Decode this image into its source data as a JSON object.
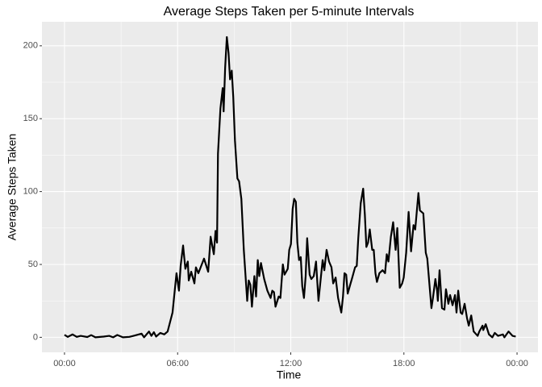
{
  "chart_data": {
    "type": "line",
    "title": "Average Steps Taken per 5-minute Intervals",
    "x_label": "Time",
    "y_label": "Average Steps Taken",
    "color": "#000000",
    "grid": true,
    "xlim": [
      -1.196,
      25.11
    ],
    "ylim": [
      -10.3,
      216.5
    ],
    "xticks": [
      {
        "value": 0,
        "label": "00:00"
      },
      {
        "value": 6,
        "label": "06:00"
      },
      {
        "value": 12,
        "label": "12:00"
      },
      {
        "value": 18,
        "label": "18:00"
      },
      {
        "value": 24,
        "label": "00:00"
      }
    ],
    "yticks": [
      0,
      50,
      100,
      150,
      200
    ],
    "x": [
      0,
      0.17,
      0.43,
      0.65,
      0.86,
      1.21,
      1.42,
      1.64,
      2.07,
      2.37,
      2.58,
      2.8,
      3.1,
      3.44,
      3.66,
      4.09,
      4.22,
      4.48,
      4.61,
      4.74,
      4.86,
      5.08,
      5.29,
      5.47,
      5.73,
      5.94,
      6.07,
      6.16,
      6.29,
      6.41,
      6.54,
      6.59,
      6.72,
      6.89,
      6.97,
      7.1,
      7.28,
      7.4,
      7.62,
      7.75,
      7.92,
      8.01,
      8.09,
      8.14,
      8.27,
      8.39,
      8.44,
      8.52,
      8.61,
      8.7,
      8.78,
      8.87,
      8.95,
      9.04,
      9.17,
      9.26,
      9.38,
      9.51,
      9.69,
      9.77,
      9.86,
      9.94,
      10.07,
      10.16,
      10.25,
      10.33,
      10.42,
      10.59,
      10.76,
      10.93,
      11.02,
      11.11,
      11.19,
      11.36,
      11.45,
      11.58,
      11.67,
      11.84,
      11.92,
      12.01,
      12.1,
      12.18,
      12.27,
      12.35,
      12.44,
      12.53,
      12.61,
      12.7,
      12.79,
      12.87,
      13.0,
      13.09,
      13.22,
      13.34,
      13.47,
      13.69,
      13.78,
      13.9,
      14.03,
      14.16,
      14.25,
      14.38,
      14.51,
      14.68,
      14.77,
      14.85,
      14.94,
      15.02,
      15.15,
      15.24,
      15.41,
      15.5,
      15.58,
      15.71,
      15.84,
      15.93,
      16.01,
      16.1,
      16.19,
      16.32,
      16.4,
      16.49,
      16.57,
      16.7,
      16.87,
      17.0,
      17.09,
      17.18,
      17.31,
      17.43,
      17.56,
      17.65,
      17.78,
      17.91,
      17.99,
      18.12,
      18.25,
      18.38,
      18.51,
      18.6,
      18.77,
      18.85,
      19.03,
      19.16,
      19.24,
      19.46,
      19.54,
      19.67,
      19.76,
      19.8,
      19.89,
      20.02,
      20.15,
      20.23,
      20.36,
      20.45,
      20.58,
      20.71,
      20.79,
      20.88,
      21.01,
      21.09,
      21.22,
      21.35,
      21.44,
      21.57,
      21.7,
      21.91,
      22.0,
      22.17,
      22.21,
      22.34,
      22.51,
      22.69,
      22.82,
      22.99,
      23.25,
      23.33,
      23.55,
      23.76,
      23.93
    ],
    "values": [
      1.7,
      0.3,
      2,
      0.3,
      1,
      0.2,
      1.5,
      0,
      0.5,
      1,
      0,
      1.6,
      0,
      0.3,
      1,
      2.5,
      0,
      4,
      1,
      3.5,
      0.5,
      3,
      2,
      4,
      17,
      44,
      32,
      49,
      63,
      47,
      52,
      39,
      45,
      37,
      48,
      44,
      50,
      54,
      45,
      69,
      57,
      73,
      65,
      126,
      157,
      171,
      155,
      185,
      206,
      195,
      177,
      183,
      165,
      135,
      109,
      107,
      95,
      60,
      25,
      39,
      36,
      21,
      42,
      28,
      53,
      42,
      51,
      40,
      32,
      27,
      32,
      31,
      21,
      28,
      27,
      50,
      43,
      47,
      60,
      64,
      88,
      95,
      93,
      65,
      53,
      55,
      35,
      27,
      42,
      68,
      43,
      40,
      42,
      52,
      25,
      53,
      46,
      60,
      52,
      48,
      37,
      41,
      27,
      17,
      28,
      44,
      43,
      30,
      36,
      40,
      48,
      49,
      68,
      92,
      102,
      84,
      62,
      65,
      74,
      60,
      60,
      44,
      38,
      44,
      46,
      44,
      57,
      52,
      69,
      79,
      60,
      75,
      34,
      37,
      41,
      58,
      86,
      59,
      77,
      74,
      99,
      87,
      85,
      58,
      54,
      20,
      27,
      40,
      32,
      25,
      46,
      20,
      19,
      33,
      23,
      29,
      22,
      29,
      17,
      32,
      17,
      16,
      23,
      13,
      8,
      15,
      4,
      1,
      4,
      8,
      5,
      9,
      2,
      0,
      3,
      1,
      2,
      0,
      4,
      1,
      0.5
    ]
  }
}
